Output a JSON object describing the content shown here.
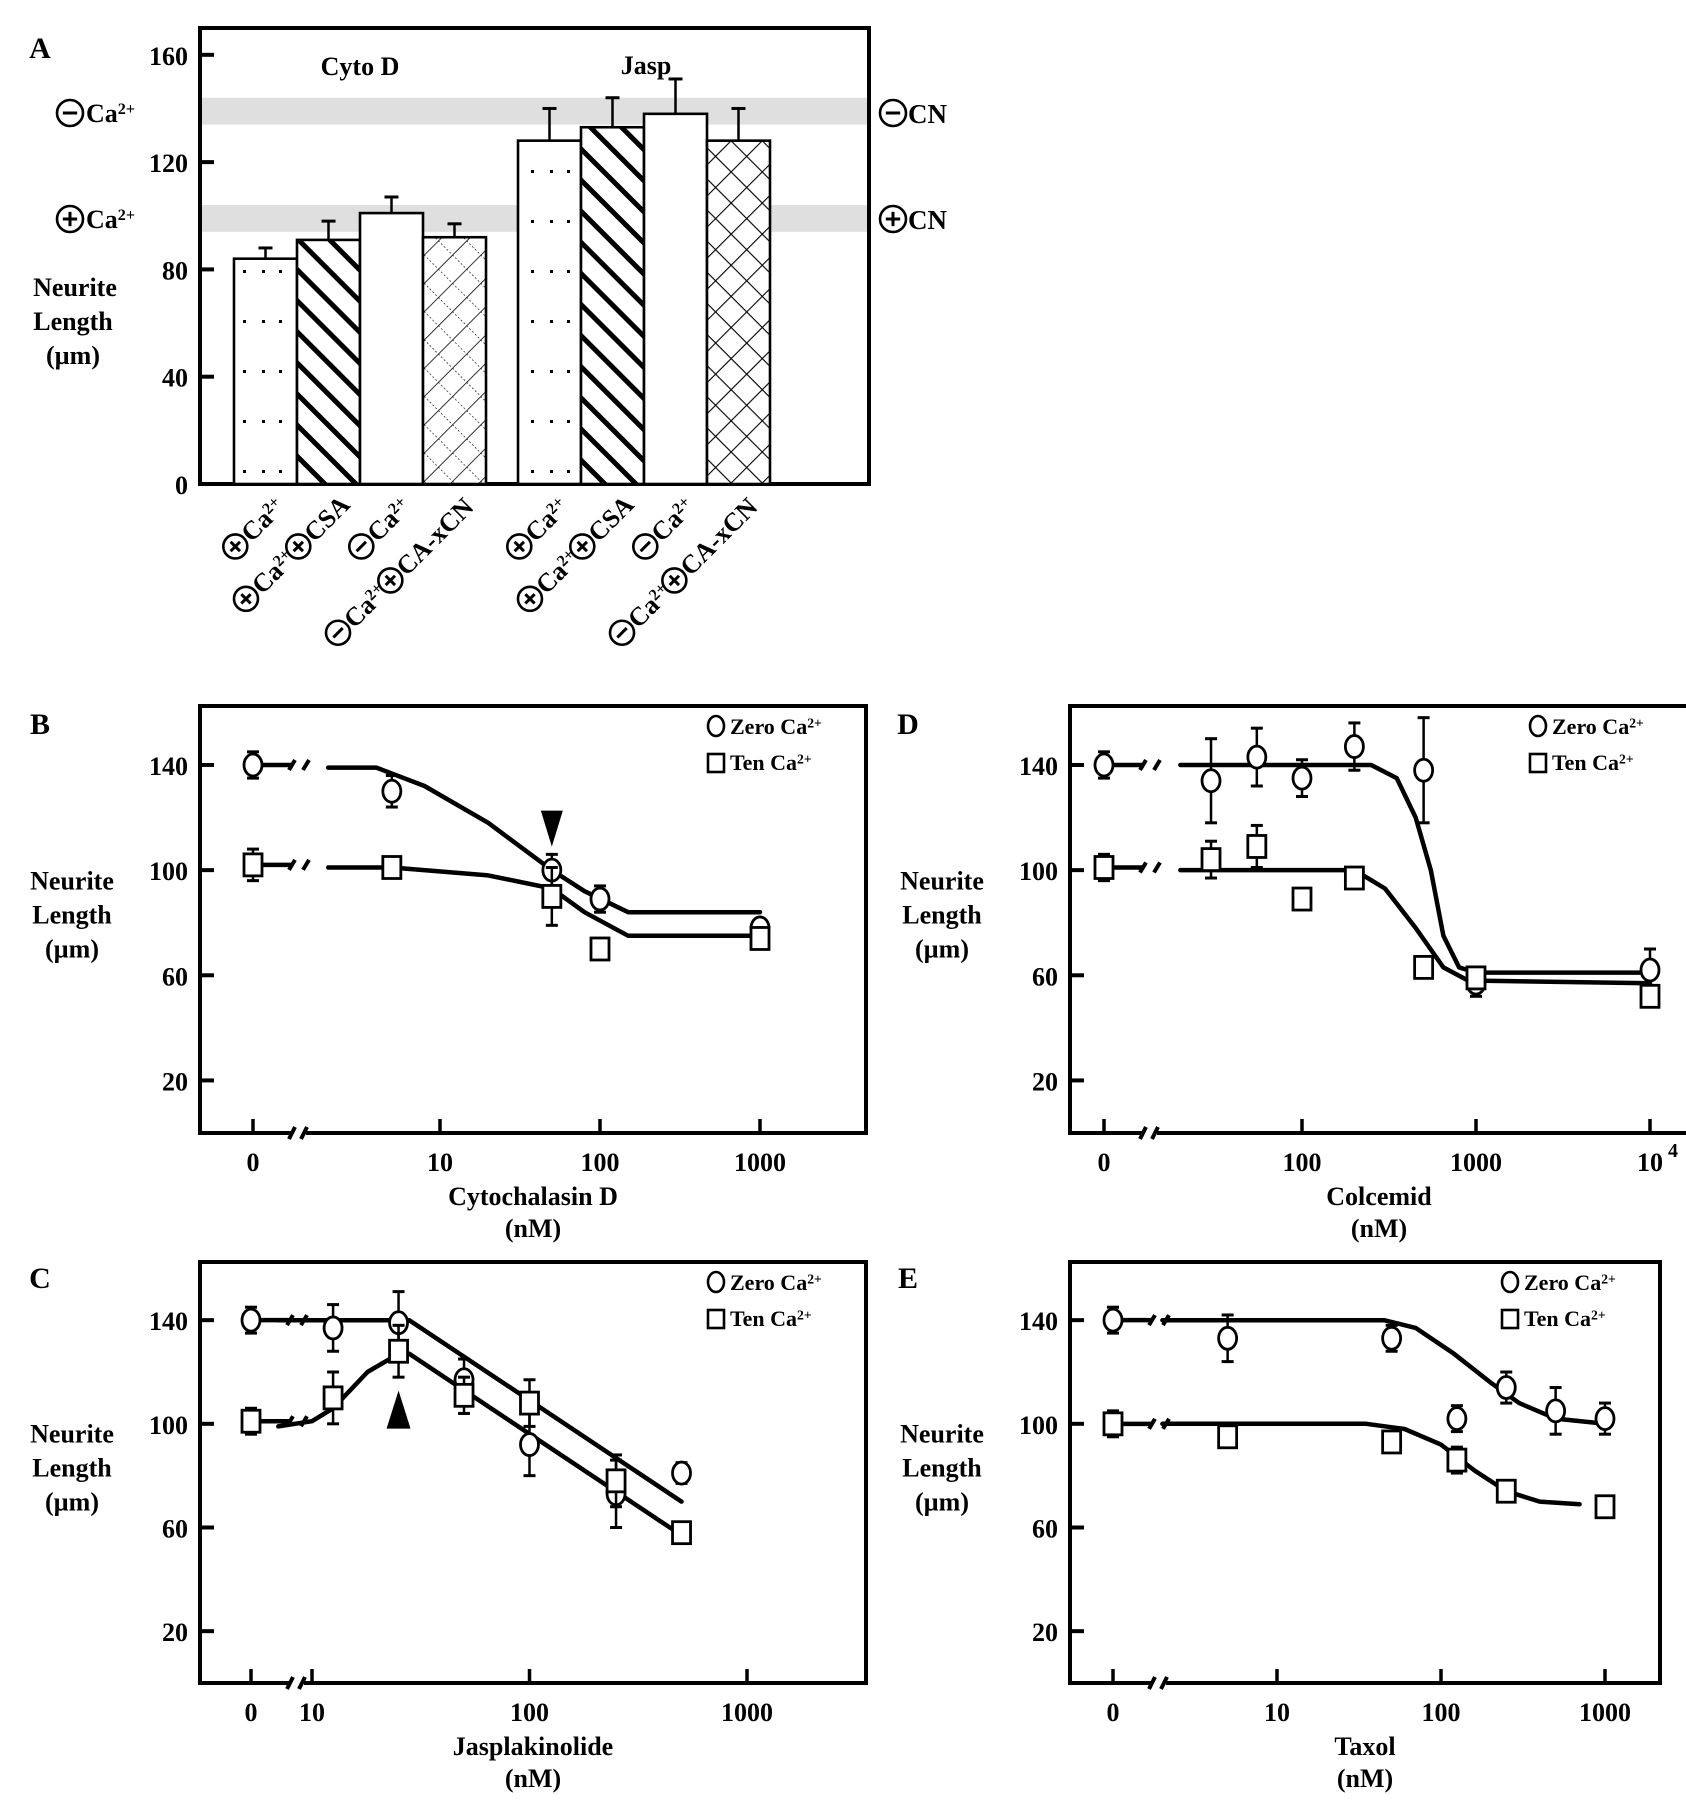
{
  "figure": {
    "panels": [
      "A",
      "B",
      "C",
      "D",
      "E"
    ]
  },
  "chart_data": [
    {
      "panel": "A",
      "type": "bar",
      "title": "",
      "ylabel": [
        "Neurite",
        "Length",
        "(µm)"
      ],
      "ylim": [
        0,
        170
      ],
      "yticks": [
        0,
        40,
        80,
        120,
        160
      ],
      "groups": [
        {
          "label": "Cyto D",
          "bars": [
            {
              "category": "⊕Ca2+",
              "value": 84,
              "error": 4,
              "pattern": "dots"
            },
            {
              "category": "⊕Ca2+⊕CSA",
              "value": 91,
              "error": 7,
              "pattern": "diagonal"
            },
            {
              "category": "⊖Ca2+",
              "value": 101,
              "error": 6,
              "pattern": "plain"
            },
            {
              "category": "⊖Ca2+⊕CA-xCN",
              "value": 92,
              "error": 5,
              "pattern": "crosshatch-fine"
            }
          ]
        },
        {
          "label": "Jasp",
          "bars": [
            {
              "category": "⊕Ca2+",
              "value": 128,
              "error": 12,
              "pattern": "dots"
            },
            {
              "category": "⊕Ca2+⊕CSA",
              "value": 133,
              "error": 11,
              "pattern": "diagonal"
            },
            {
              "category": "⊖Ca2+",
              "value": 138,
              "error": 13,
              "pattern": "plain"
            },
            {
              "category": "⊖Ca2+⊕CA-xCN",
              "value": 128,
              "error": 12,
              "pattern": "crosshatch"
            }
          ]
        }
      ],
      "reference_bands": [
        {
          "label_left": "⊖Ca2+",
          "label_right": "⊖CN",
          "range": [
            134,
            144
          ]
        },
        {
          "label_left": "⊕Ca2+",
          "label_right": "⊕CN",
          "range": [
            94,
            104
          ]
        }
      ],
      "band_color": "#d9d9d9"
    },
    {
      "panel": "B",
      "type": "scatter",
      "xlabel": [
        "Cytochalasin D",
        "(nM)"
      ],
      "ylabel": [
        "Neurite",
        "Length",
        "(µm)"
      ],
      "xscale": "log-with-break",
      "xticks": [
        "0",
        "10",
        "100",
        "1000"
      ],
      "ylim": [
        0,
        160
      ],
      "yticks": [
        20,
        60,
        100,
        140
      ],
      "legend": [
        "Zero Ca2+",
        "Ten Ca2+"
      ],
      "legend_position": "top-right",
      "annotation": {
        "type": "arrow-down",
        "x": 50
      },
      "series": [
        {
          "name": "Zero Ca2+",
          "marker": "circle",
          "points": [
            [
              0,
              140,
              5
            ],
            [
              5,
              130,
              6
            ],
            [
              50,
              100,
              6
            ],
            [
              100,
              89,
              5
            ],
            [
              1000,
              78,
              3
            ]
          ],
          "fit": [
            [
              2,
              139
            ],
            [
              4,
              139
            ],
            [
              8,
              132
            ],
            [
              20,
              118
            ],
            [
              50,
              100
            ],
            [
              80,
              92
            ],
            [
              150,
              84
            ],
            [
              1000,
              84
            ]
          ]
        },
        {
          "name": "Ten Ca2+",
          "marker": "square",
          "points": [
            [
              0,
              102,
              6
            ],
            [
              5,
              101,
              4
            ],
            [
              50,
              90,
              11
            ],
            [
              100,
              70,
              4
            ],
            [
              1000,
              74,
              3
            ]
          ],
          "fit": [
            [
              2,
              101
            ],
            [
              5,
              101
            ],
            [
              20,
              98
            ],
            [
              50,
              93
            ],
            [
              80,
              84
            ],
            [
              150,
              75
            ],
            [
              1000,
              75
            ]
          ]
        }
      ]
    },
    {
      "panel": "C",
      "type": "scatter",
      "xlabel": [
        "Jasplakinolide",
        "(nM)"
      ],
      "ylabel": [
        "Neurite",
        "Length",
        "(µm)"
      ],
      "xscale": "log-with-break",
      "xticks": [
        "0",
        "10",
        "100",
        "1000"
      ],
      "ylim": [
        0,
        160
      ],
      "yticks": [
        20,
        60,
        100,
        140
      ],
      "legend": [
        "Zero Ca2+",
        "Ten Ca2+"
      ],
      "legend_position": "top-right",
      "annotation": {
        "type": "arrow-up",
        "x": 25
      },
      "series": [
        {
          "name": "Zero Ca2+",
          "marker": "circle",
          "points": [
            [
              0,
              140,
              5
            ],
            [
              12.5,
              137,
              9
            ],
            [
              25,
              139,
              12
            ],
            [
              50,
              117,
              8
            ],
            [
              100,
              92,
              12
            ],
            [
              250,
              73,
              13
            ],
            [
              500,
              81,
              4
            ]
          ],
          "fit": [
            [
              7,
              140
            ],
            [
              28,
              140
            ],
            [
              500,
              70
            ]
          ]
        },
        {
          "name": "Ten Ca2+",
          "marker": "square",
          "points": [
            [
              0,
              101,
              5
            ],
            [
              12.5,
              110,
              10
            ],
            [
              25,
              128,
              10
            ],
            [
              50,
              111,
              7
            ],
            [
              100,
              108,
              9
            ],
            [
              250,
              78,
              10
            ],
            [
              500,
              58,
              4
            ]
          ],
          "fit": [
            [
              7,
              99
            ],
            [
              10,
              101
            ],
            [
              12.5,
              106
            ],
            [
              18,
              120
            ],
            [
              25,
              127
            ],
            [
              28,
              127
            ],
            [
              500,
              57
            ]
          ]
        }
      ]
    },
    {
      "panel": "D",
      "type": "scatter",
      "xlabel": [
        "Colcemid",
        "(nM)"
      ],
      "ylabel": [
        "Neurite",
        "Length",
        "(µm)"
      ],
      "xscale": "log-with-break",
      "xticks": [
        "0",
        "100",
        "1000",
        "10^4"
      ],
      "ylim": [
        0,
        160
      ],
      "yticks": [
        20,
        60,
        100,
        140
      ],
      "legend": [
        "Zero Ca2+",
        "Ten Ca2+"
      ],
      "legend_position": "top-right",
      "series": [
        {
          "name": "Zero Ca2+",
          "marker": "circle",
          "points": [
            [
              0,
              140,
              5
            ],
            [
              30,
              134,
              16
            ],
            [
              55,
              143,
              11
            ],
            [
              100,
              135,
              7
            ],
            [
              200,
              147,
              9
            ],
            [
              500,
              138,
              20
            ],
            [
              1000,
              57,
              5
            ],
            [
              10000,
              62,
              8
            ]
          ],
          "fit": [
            [
              20,
              140
            ],
            [
              250,
              140
            ],
            [
              350,
              135
            ],
            [
              450,
              120
            ],
            [
              550,
              100
            ],
            [
              650,
              75
            ],
            [
              800,
              63
            ],
            [
              1000,
              61
            ],
            [
              10000,
              61
            ]
          ]
        },
        {
          "name": "Ten Ca2+",
          "marker": "square",
          "points": [
            [
              0,
              101,
              5
            ],
            [
              30,
              104,
              7
            ],
            [
              55,
              109,
              8
            ],
            [
              100,
              89,
              0
            ],
            [
              200,
              97,
              4
            ],
            [
              500,
              63,
              3
            ],
            [
              1000,
              59,
              3
            ],
            [
              10000,
              52,
              3
            ]
          ],
          "fit": [
            [
              20,
              100
            ],
            [
              200,
              100
            ],
            [
              300,
              93
            ],
            [
              450,
              78
            ],
            [
              650,
              63
            ],
            [
              900,
              58
            ],
            [
              10000,
              57
            ]
          ]
        }
      ]
    },
    {
      "panel": "E",
      "type": "scatter",
      "xlabel": [
        "Taxol",
        "(nM)"
      ],
      "ylabel": [
        "Neurite",
        "Length",
        "(µm)"
      ],
      "xscale": "log-with-break",
      "xticks": [
        "0",
        "10",
        "100",
        "1000"
      ],
      "ylim": [
        0,
        160
      ],
      "yticks": [
        20,
        60,
        100,
        140
      ],
      "legend": [
        "Zero Ca2+",
        "Ten Ca2+"
      ],
      "legend_position": "top-right",
      "series": [
        {
          "name": "Zero Ca2+",
          "marker": "circle",
          "points": [
            [
              0,
              140,
              5
            ],
            [
              5,
              133,
              9
            ],
            [
              50,
              133,
              5
            ],
            [
              125,
              102,
              5
            ],
            [
              250,
              114,
              6
            ],
            [
              500,
              105,
              9
            ],
            [
              1000,
              102,
              6
            ]
          ],
          "fit": [
            [
              2,
              140
            ],
            [
              45,
              140
            ],
            [
              70,
              137
            ],
            [
              120,
              127
            ],
            [
              200,
              116
            ],
            [
              300,
              108
            ],
            [
              500,
              102
            ],
            [
              1000,
              100
            ]
          ]
        },
        {
          "name": "Ten Ca2+",
          "marker": "square",
          "points": [
            [
              0,
              100,
              5
            ],
            [
              5,
              95,
              3
            ],
            [
              50,
              93,
              3
            ],
            [
              125,
              86,
              5
            ],
            [
              250,
              74,
              3
            ],
            [
              1000,
              68,
              0
            ]
          ],
          "fit": [
            [
              2,
              100
            ],
            [
              35,
              100
            ],
            [
              60,
              98
            ],
            [
              100,
              92
            ],
            [
              160,
              82
            ],
            [
              250,
              74
            ],
            [
              400,
              70
            ],
            [
              700,
              69
            ]
          ]
        }
      ]
    }
  ],
  "labels": {
    "panel_a": "A",
    "panel_b": "B",
    "panel_c": "C",
    "panel_d": "D",
    "panel_e": "E",
    "cyto_d": "Cyto D",
    "jasp": "Jasp",
    "ylabel_1": "Neurite",
    "ylabel_2": "Length",
    "ylabel_3": "(µm)",
    "minus_ca": "Ca",
    "plus_ca": "Ca",
    "sup": "2+",
    "minus_cn": "CN",
    "plus_cn": "CN",
    "zero": "Zero Ca",
    "ten": "Ten Ca",
    "xlabel_b": "Cytochalasin D",
    "xlabel_c": "Jasplakinolide",
    "xlabel_d": "Colcemid",
    "xlabel_e": "Taxol",
    "unit": "(nM)",
    "cat_ca": "Ca",
    "cat_csa": "CSA",
    "cat_caxcn": "CA-xCN"
  }
}
